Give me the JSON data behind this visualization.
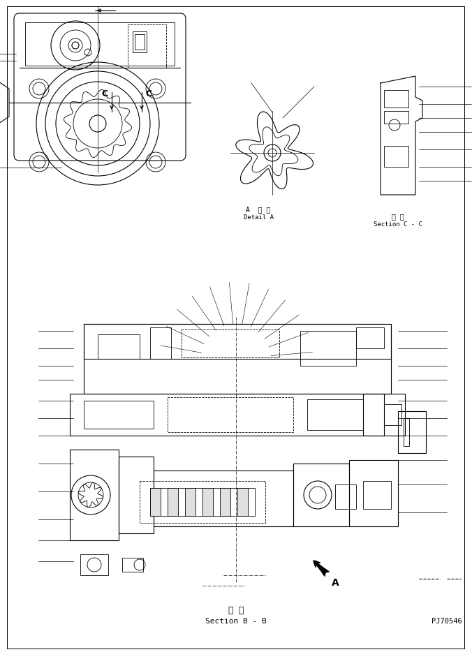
{
  "bg_color": "#ffffff",
  "line_color": "#000000",
  "fig_width": 6.76,
  "fig_height": 9.45,
  "title_japanese": "断 面",
  "title_english": "Section B - B",
  "part_number": "PJ70546",
  "detail_a_japanese": "A  詳 細",
  "detail_a_english": "Detail A",
  "section_cc_japanese": "断 面",
  "section_cc_english": "Section C - C",
  "label_c1": "C",
  "label_c2": "C",
  "label_a": "A"
}
